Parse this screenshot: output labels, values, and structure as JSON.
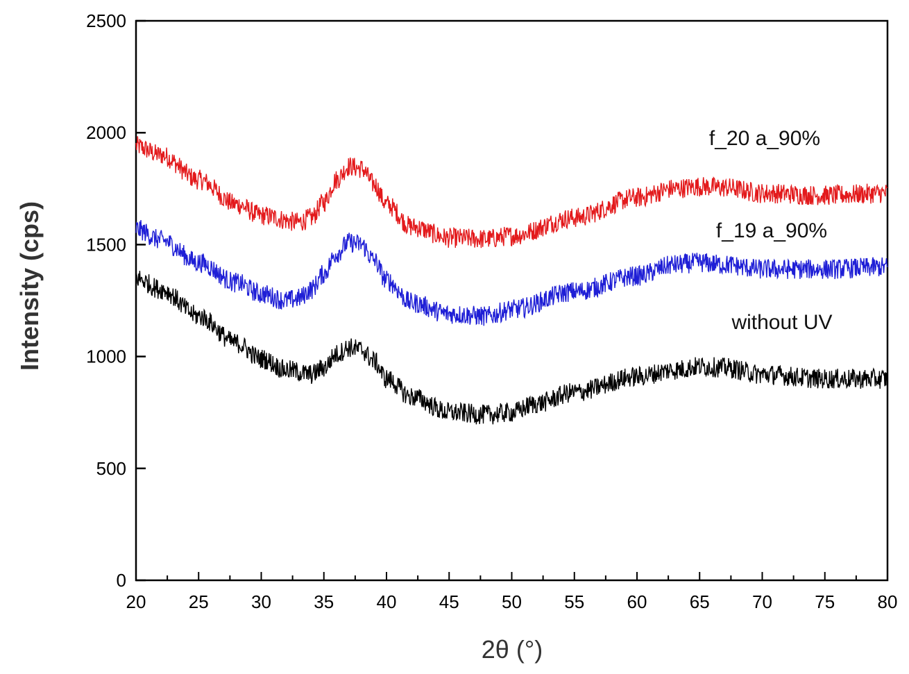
{
  "chart_data": {
    "type": "line",
    "title": "",
    "xlabel": "2θ (°)",
    "ylabel": "Intensity (cps)",
    "xlim": [
      20,
      80
    ],
    "ylim": [
      0,
      2500
    ],
    "x_ticks": [
      20,
      25,
      30,
      35,
      40,
      45,
      50,
      55,
      60,
      65,
      70,
      75,
      80
    ],
    "y_ticks": [
      0,
      500,
      1000,
      1500,
      2000,
      2500
    ],
    "grid": false,
    "legend": "inline labels",
    "series": [
      {
        "name": "f_20 a_90%",
        "color": "#e31a1c",
        "x": [
          20,
          22,
          25,
          28,
          30,
          33,
          34,
          35,
          36,
          37,
          38,
          39,
          40,
          42,
          45,
          48,
          50,
          55,
          60,
          63,
          65,
          67,
          70,
          75,
          80
        ],
        "y": [
          1940,
          1900,
          1790,
          1680,
          1630,
          1600,
          1620,
          1690,
          1790,
          1850,
          1840,
          1770,
          1680,
          1580,
          1530,
          1525,
          1540,
          1620,
          1710,
          1750,
          1760,
          1755,
          1730,
          1720,
          1730
        ]
      },
      {
        "name": "f_19 a_90%",
        "color": "#1f1fd6",
        "x": [
          20,
          22,
          25,
          28,
          30,
          32,
          33,
          34,
          35,
          36,
          37,
          38,
          39,
          40,
          42,
          45,
          48,
          50,
          55,
          60,
          63,
          65,
          67,
          70,
          75,
          80
        ],
        "y": [
          1570,
          1520,
          1420,
          1330,
          1280,
          1250,
          1260,
          1300,
          1370,
          1460,
          1510,
          1500,
          1430,
          1340,
          1240,
          1190,
          1180,
          1210,
          1290,
          1360,
          1410,
          1420,
          1410,
          1390,
          1390,
          1400
        ]
      },
      {
        "name": "without UV",
        "color": "#000000",
        "x": [
          20,
          22,
          25,
          28,
          30,
          32,
          34,
          35,
          36,
          37,
          38,
          39,
          40,
          42,
          45,
          48,
          50,
          52,
          55,
          60,
          63,
          65,
          67,
          70,
          75,
          80
        ],
        "y": [
          1350,
          1300,
          1180,
          1060,
          990,
          940,
          920,
          950,
          1010,
          1040,
          1030,
          980,
          900,
          820,
          750,
          740,
          750,
          790,
          840,
          910,
          940,
          955,
          950,
          920,
          900,
          900
        ]
      }
    ]
  }
}
